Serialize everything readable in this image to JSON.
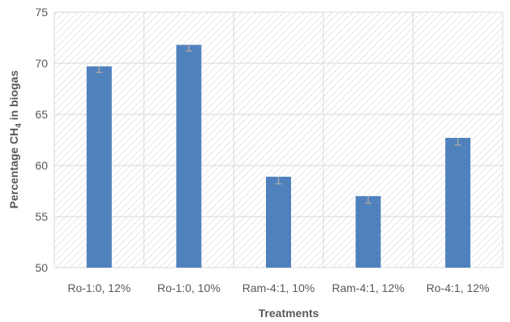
{
  "chart_data": {
    "type": "bar",
    "title": "",
    "xlabel": "Treatments",
    "ylabel": {
      "main": "Percentage CH",
      "subscript": "4",
      "suffix": " in biogas"
    },
    "categories": [
      "Ro-1:0, 12%",
      "Ro-1:0, 10%",
      "Ram-4:1, 10%",
      "Ram-4:1, 12%",
      "Ro-4:1, 12%"
    ],
    "values": [
      69.7,
      71.8,
      58.9,
      57.0,
      62.7
    ],
    "error_low": [
      69.1,
      71.2,
      58.2,
      56.3,
      62.0
    ],
    "ylim": [
      50,
      75
    ],
    "yticks": [
      50,
      55,
      60,
      65,
      70,
      75
    ],
    "grid": true,
    "background_pattern": "diagonal-hatch",
    "bar_color": "#4f81bd",
    "error_color": "#a6a6a6"
  }
}
